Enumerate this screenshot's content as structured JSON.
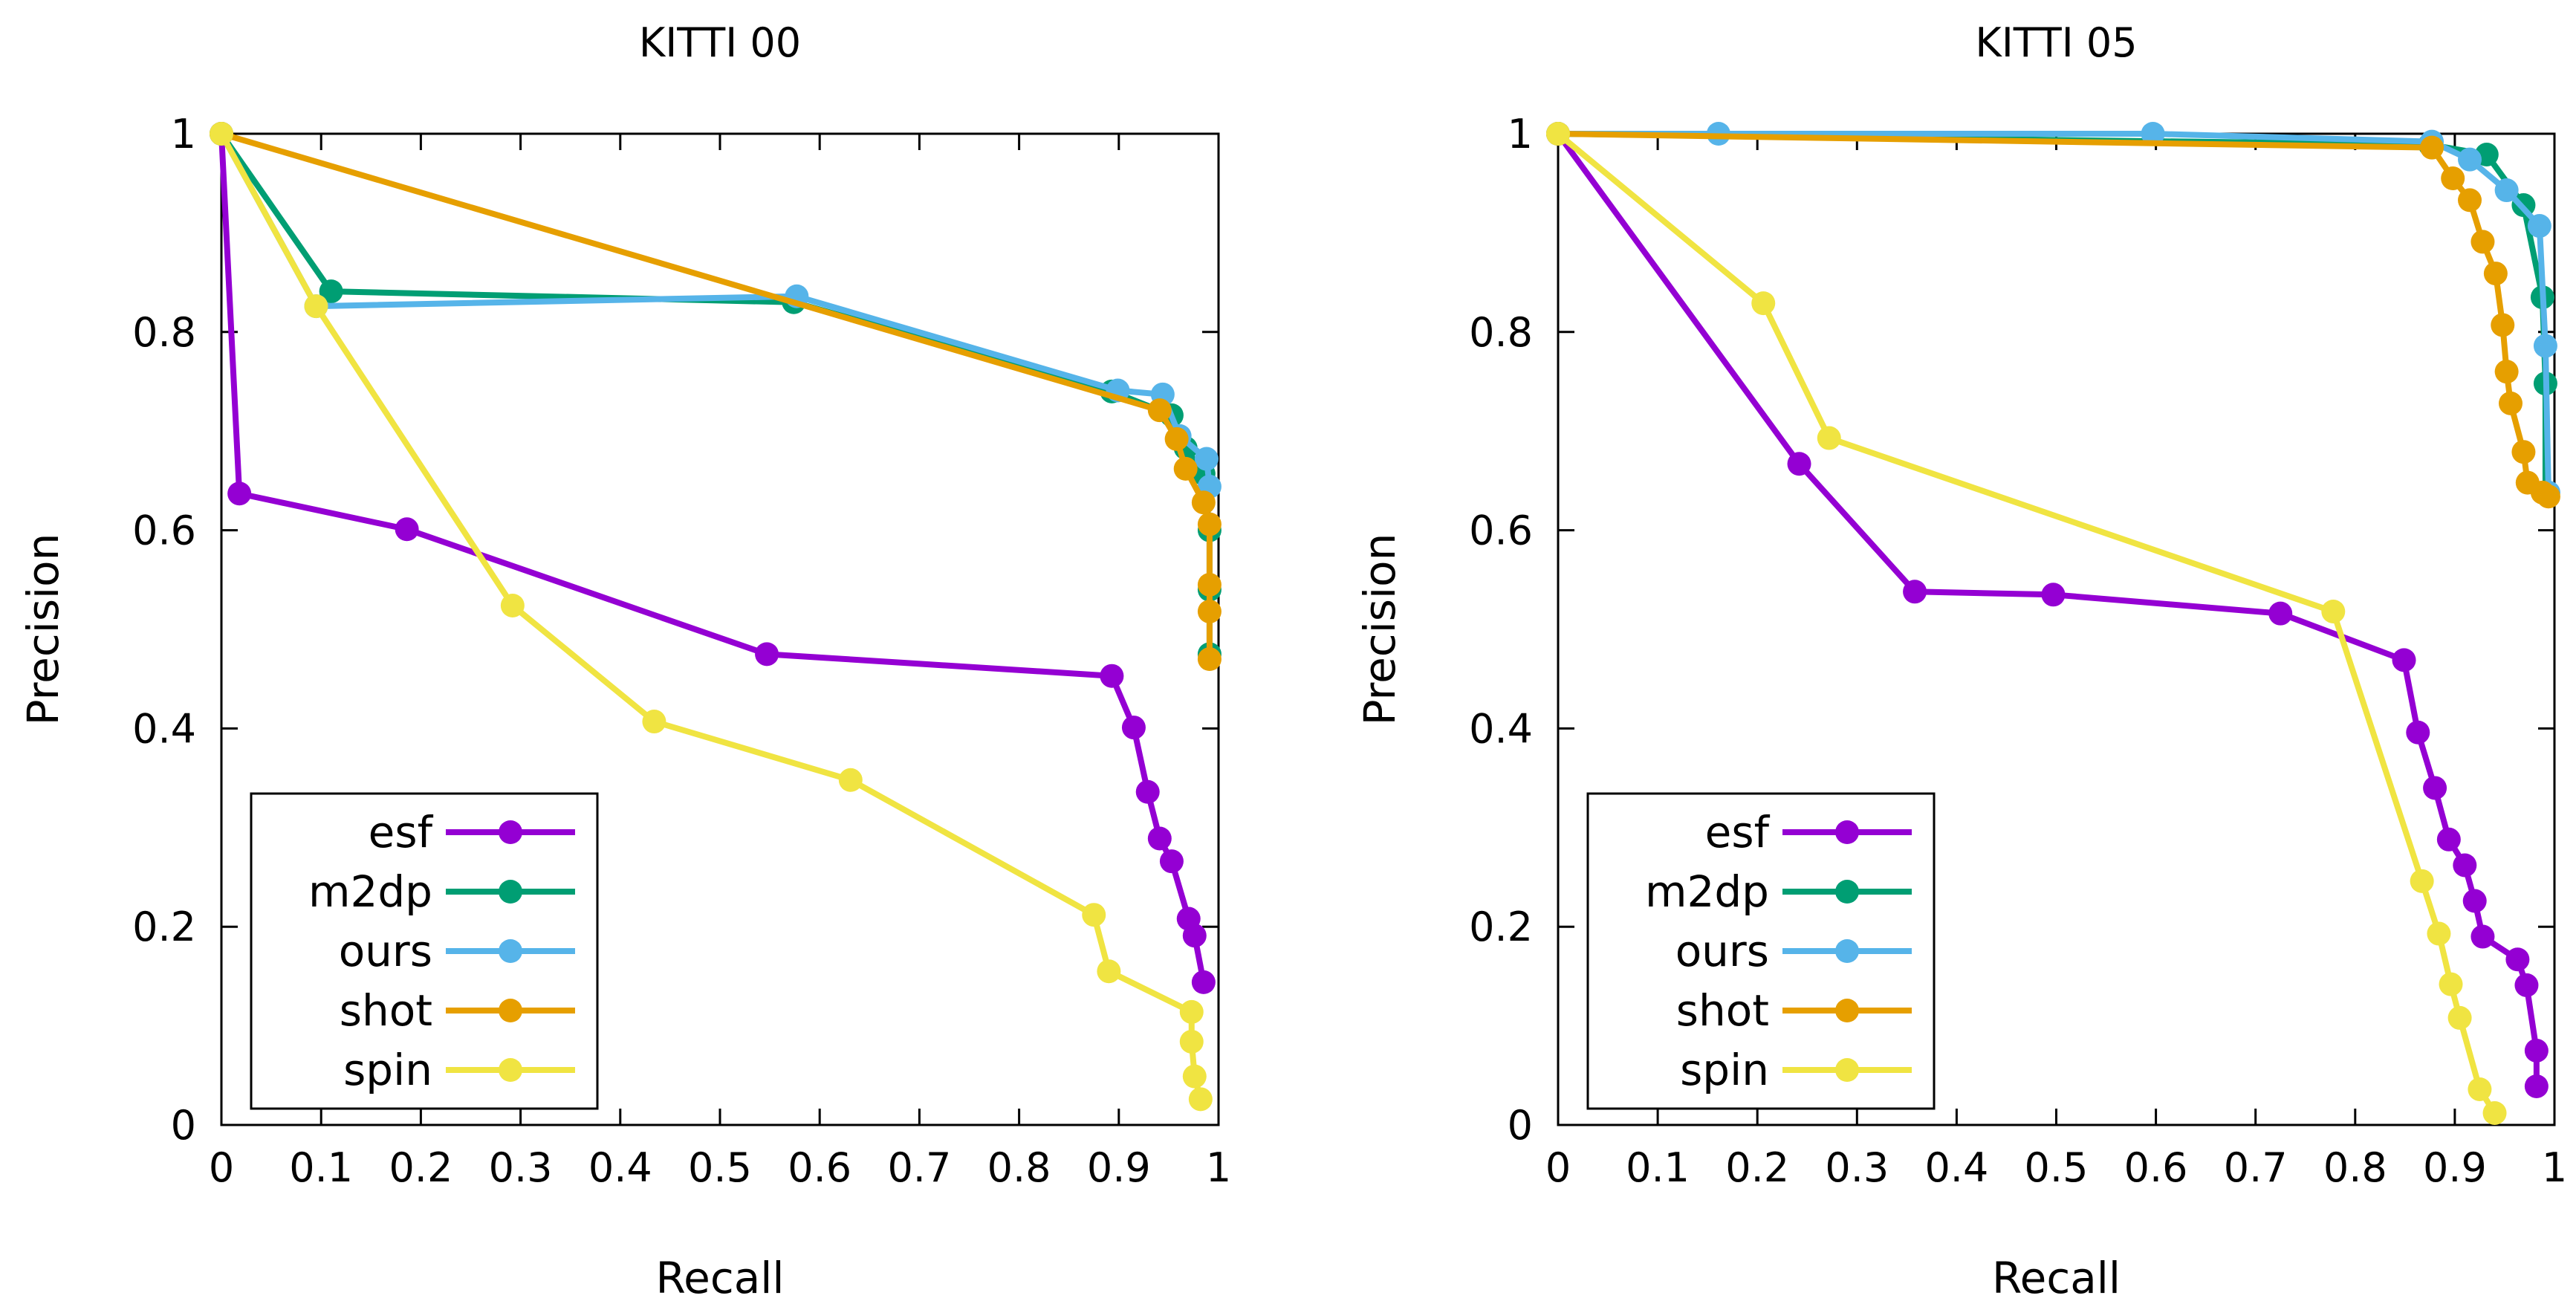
{
  "chart_data": [
    {
      "type": "line",
      "title": "KITTI 00",
      "xlabel": "Recall",
      "ylabel": "Precision",
      "xlim": [
        0,
        1
      ],
      "ylim": [
        0,
        1
      ],
      "x_ticks": [
        "0",
        "0.1",
        "0.2",
        "0.3",
        "0.4",
        "0.5",
        "0.6",
        "0.7",
        "0.8",
        "0.9",
        "1"
      ],
      "y_ticks": [
        "0",
        "0.2",
        "0.4",
        "0.6",
        "0.8",
        "1"
      ],
      "grid": false,
      "legend_position": "bottom-left",
      "series": [
        {
          "name": "esf",
          "color": "#9400d3",
          "points": [
            [
              0,
              1
            ],
            [
              0.018,
              0.637
            ],
            [
              0.186,
              0.601
            ],
            [
              0.547,
              0.475
            ],
            [
              0.893,
              0.453
            ],
            [
              0.915,
              0.401
            ],
            [
              0.929,
              0.336
            ],
            [
              0.941,
              0.289
            ],
            [
              0.953,
              0.266
            ],
            [
              0.97,
              0.208
            ],
            [
              0.976,
              0.191
            ],
            [
              0.985,
              0.144
            ]
          ]
        },
        {
          "name": "m2dp",
          "color": "#009e73",
          "points": [
            [
              0,
              1
            ],
            [
              0.11,
              0.841
            ],
            [
              0.574,
              0.83
            ],
            [
              0.893,
              0.74
            ],
            [
              0.953,
              0.716
            ],
            [
              0.967,
              0.683
            ],
            [
              0.985,
              0.657
            ],
            [
              0.991,
              0.6
            ],
            [
              0.991,
              0.54
            ],
            [
              0.991,
              0.475
            ]
          ]
        },
        {
          "name": "ours",
          "color": "#56b4e9",
          "points": [
            [
              0,
              1
            ],
            [
              0.095,
              0.826
            ],
            [
              0.577,
              0.836
            ],
            [
              0.899,
              0.741
            ],
            [
              0.944,
              0.737
            ],
            [
              0.961,
              0.695
            ],
            [
              0.988,
              0.672
            ],
            [
              0.991,
              0.644
            ]
          ]
        },
        {
          "name": "shot",
          "color": "#e69f00",
          "points": [
            [
              0,
              1
            ],
            [
              0.941,
              0.721
            ],
            [
              0.958,
              0.692
            ],
            [
              0.967,
              0.662
            ],
            [
              0.985,
              0.628
            ],
            [
              0.991,
              0.606
            ],
            [
              0.991,
              0.545
            ],
            [
              0.991,
              0.518
            ],
            [
              0.991,
              0.47
            ]
          ]
        },
        {
          "name": "spin",
          "color": "#f0e442",
          "points": [
            [
              0,
              1
            ],
            [
              0.095,
              0.826
            ],
            [
              0.292,
              0.524
            ],
            [
              0.434,
              0.407
            ],
            [
              0.631,
              0.348
            ],
            [
              0.875,
              0.212
            ],
            [
              0.89,
              0.155
            ],
            [
              0.973,
              0.114
            ],
            [
              0.973,
              0.084
            ],
            [
              0.976,
              0.049
            ],
            [
              0.982,
              0.026
            ]
          ]
        }
      ]
    },
    {
      "type": "line",
      "title": "KITTI 05",
      "xlabel": "Recall",
      "ylabel": "Precision",
      "xlim": [
        0,
        1
      ],
      "ylim": [
        0,
        1
      ],
      "x_ticks": [
        "0",
        "0.1",
        "0.2",
        "0.3",
        "0.4",
        "0.5",
        "0.6",
        "0.7",
        "0.8",
        "0.9",
        "1"
      ],
      "y_ticks": [
        "0",
        "0.2",
        "0.4",
        "0.6",
        "0.8",
        "1"
      ],
      "grid": false,
      "legend_position": "bottom-left",
      "series": [
        {
          "name": "esf",
          "color": "#9400d3",
          "points": [
            [
              0,
              1
            ],
            [
              0.242,
              0.667
            ],
            [
              0.358,
              0.538
            ],
            [
              0.497,
              0.535
            ],
            [
              0.725,
              0.516
            ],
            [
              0.849,
              0.469
            ],
            [
              0.863,
              0.396
            ],
            [
              0.88,
              0.34
            ],
            [
              0.894,
              0.288
            ],
            [
              0.91,
              0.262
            ],
            [
              0.92,
              0.226
            ],
            [
              0.928,
              0.19
            ],
            [
              0.963,
              0.167
            ],
            [
              0.972,
              0.141
            ],
            [
              0.982,
              0.075
            ],
            [
              0.982,
              0.039
            ]
          ]
        },
        {
          "name": "m2dp",
          "color": "#009e73",
          "points": [
            [
              0,
              1
            ],
            [
              0.875,
              0.989
            ],
            [
              0.932,
              0.979
            ],
            [
              0.969,
              0.928
            ],
            [
              0.988,
              0.835
            ],
            [
              0.991,
              0.748
            ],
            [
              0.991,
              0.638
            ]
          ]
        },
        {
          "name": "ours",
          "color": "#56b4e9",
          "points": [
            [
              0,
              1
            ],
            [
              0.161,
              1
            ],
            [
              0.597,
              1
            ],
            [
              0.877,
              0.992
            ],
            [
              0.915,
              0.974
            ],
            [
              0.952,
              0.943
            ],
            [
              0.985,
              0.907
            ],
            [
              0.991,
              0.786
            ],
            [
              0.994,
              0.638
            ]
          ]
        },
        {
          "name": "shot",
          "color": "#e69f00",
          "points": [
            [
              0,
              1
            ],
            [
              0.877,
              0.986
            ],
            [
              0.898,
              0.955
            ],
            [
              0.915,
              0.933
            ],
            [
              0.928,
              0.891
            ],
            [
              0.941,
              0.859
            ],
            [
              0.948,
              0.807
            ],
            [
              0.952,
              0.76
            ],
            [
              0.956,
              0.728
            ],
            [
              0.969,
              0.679
            ],
            [
              0.973,
              0.648
            ],
            [
              0.988,
              0.638
            ],
            [
              0.994,
              0.634
            ]
          ]
        },
        {
          "name": "spin",
          "color": "#f0e442",
          "points": [
            [
              0,
              1
            ],
            [
              0.206,
              0.829
            ],
            [
              0.272,
              0.693
            ],
            [
              0.778,
              0.518
            ],
            [
              0.867,
              0.246
            ],
            [
              0.884,
              0.193
            ],
            [
              0.896,
              0.142
            ],
            [
              0.905,
              0.108
            ],
            [
              0.925,
              0.036
            ],
            [
              0.94,
              0.012
            ]
          ]
        }
      ]
    }
  ]
}
